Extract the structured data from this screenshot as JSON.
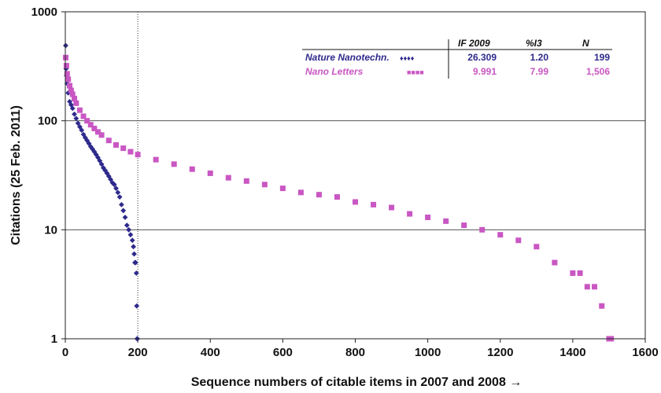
{
  "chart_data": {
    "type": "scatter",
    "title": "",
    "xlabel": "Sequence numbers of citable items in 2007 and 2008 →",
    "ylabel": "Citations (25 Feb. 2011)",
    "xlim": [
      0,
      1600
    ],
    "ylim": [
      1,
      1000
    ],
    "yscale": "log",
    "x_ticks": [
      "0",
      "200",
      "400",
      "600",
      "800",
      "1000",
      "1200",
      "1400",
      "1600"
    ],
    "y_ticks": [
      "1",
      "10",
      "100",
      "1000"
    ],
    "grid": "horizontal lines at decades",
    "reference_line_x": 200,
    "legend": {
      "placement": "top-right",
      "headers": [
        "IF 2009",
        "%I3",
        "N"
      ],
      "rows": [
        {
          "name": "Nature Nanotechn.",
          "marker": "♦♦♦♦",
          "if2009": "26.309",
          "pct_i3": "1.20",
          "n": "199"
        },
        {
          "name": "Nano Letters",
          "marker": "■■■■",
          "if2009": "9.991",
          "pct_i3": "7.99",
          "n": "1,506"
        }
      ]
    },
    "series": [
      {
        "name": "Nature Nanotechn.",
        "color": "#2e2a8c",
        "marker": "diamond",
        "x": [
          1,
          2,
          3,
          5,
          8,
          12,
          16,
          20,
          25,
          30,
          35,
          40,
          45,
          50,
          55,
          60,
          65,
          70,
          75,
          80,
          85,
          90,
          95,
          100,
          105,
          110,
          115,
          120,
          125,
          130,
          135,
          140,
          145,
          150,
          155,
          160,
          165,
          170,
          175,
          180,
          185,
          188,
          190,
          192,
          194,
          196,
          197,
          198,
          199
        ],
        "y": [
          490,
          300,
          260,
          220,
          180,
          150,
          140,
          130,
          115,
          105,
          95,
          88,
          82,
          75,
          70,
          66,
          62,
          58,
          55,
          52,
          49,
          46,
          43,
          40,
          37,
          35,
          33,
          31,
          29,
          27,
          26,
          24,
          22,
          20,
          17,
          15,
          13,
          11,
          10,
          9,
          8,
          7,
          6,
          5,
          5,
          4,
          2,
          1,
          1
        ]
      },
      {
        "name": "Nano Letters",
        "color": "#c957c3",
        "marker": "square",
        "x": [
          1,
          3,
          5,
          8,
          12,
          16,
          20,
          25,
          30,
          40,
          50,
          60,
          70,
          80,
          90,
          100,
          120,
          140,
          160,
          180,
          200,
          250,
          300,
          350,
          400,
          450,
          500,
          550,
          600,
          650,
          700,
          750,
          800,
          850,
          900,
          950,
          1000,
          1050,
          1100,
          1150,
          1200,
          1250,
          1300,
          1350,
          1400,
          1420,
          1440,
          1460,
          1480,
          1500,
          1506
        ],
        "y": [
          380,
          320,
          270,
          240,
          210,
          190,
          175,
          160,
          145,
          125,
          110,
          100,
          92,
          85,
          79,
          74,
          66,
          60,
          56,
          52,
          49,
          44,
          40,
          36,
          33,
          30,
          28,
          26,
          24,
          22,
          21,
          20,
          18,
          17,
          16,
          14,
          13,
          12,
          11,
          10,
          9,
          8,
          7,
          5,
          4,
          4,
          3,
          3,
          2,
          1,
          1
        ]
      }
    ]
  }
}
